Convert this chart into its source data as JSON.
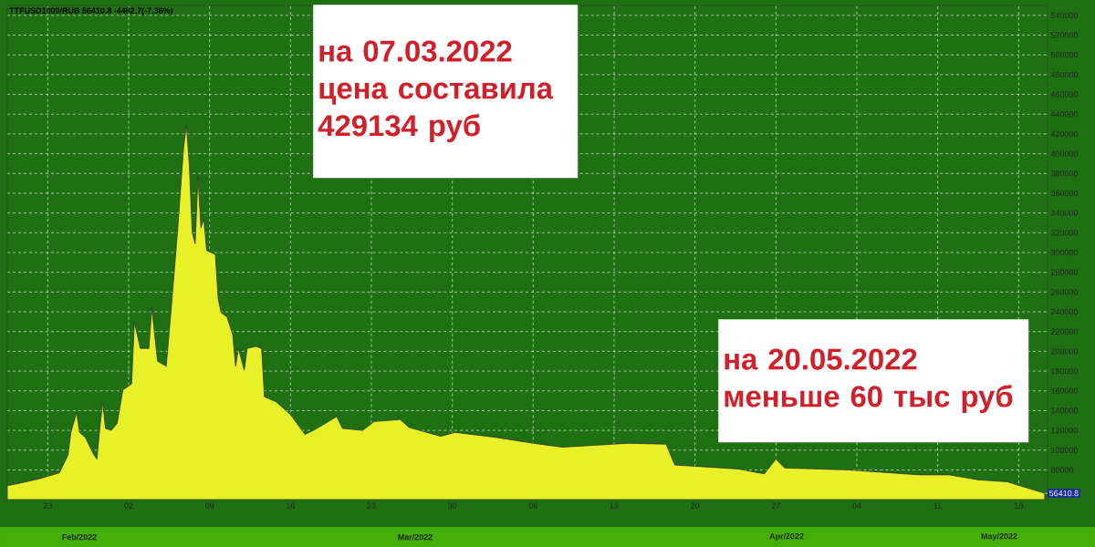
{
  "chart_data": {
    "type": "area",
    "title": "TTFUSD1000/RUB 56410.8 -4482.7(-7.36%)",
    "x": [
      "2022-02-19T12:00",
      "2022-02-20T18:00",
      "2022-02-22T06:00",
      "2022-02-24T00:00",
      "2022-02-24T18:00",
      "2022-02-25T00:00",
      "2022-02-25T12:00",
      "2022-02-25T18:00",
      "2022-02-26T06:00",
      "2022-02-27T00:00",
      "2022-02-27T06:00",
      "2022-02-27T12:00",
      "2022-02-27T18:00",
      "2022-02-28T00:00",
      "2022-02-28T12:00",
      "2022-03-01T00:00",
      "2022-03-01T12:00",
      "2022-03-02T06:00",
      "2022-03-02T12:00",
      "2022-03-03T00:00",
      "2022-03-03T18:00",
      "2022-03-04T00:00",
      "2022-03-04T12:00",
      "2022-03-05T06:00",
      "2022-03-05T18:00",
      "2022-03-06T06:00",
      "2022-03-06T18:00",
      "2022-03-07T00:00",
      "2022-03-07T06:00",
      "2022-03-07T12:00",
      "2022-03-07T18:00",
      "2022-03-08T00:00",
      "2022-03-08T06:00",
      "2022-03-08T12:00",
      "2022-03-08T18:00",
      "2022-03-09T12:00",
      "2022-03-09T18:00",
      "2022-03-10T00:00",
      "2022-03-10T12:00",
      "2022-03-11T00:00",
      "2022-03-11T06:00",
      "2022-03-11T12:00",
      "2022-03-12T00:00",
      "2022-03-12T06:00",
      "2022-03-13T00:00",
      "2022-03-13T12:00",
      "2022-03-13T18:00",
      "2022-03-14T18:00",
      "2022-03-16T00:00",
      "2022-03-17T06:00",
      "2022-03-18T00:00",
      "2022-03-20T00:00",
      "2022-03-20T12:00",
      "2022-03-22T06:00",
      "2022-03-23T06:00",
      "2022-03-25T12:00",
      "2022-03-26T06:00",
      "2022-03-29T00:00",
      "2022-03-30T06:00",
      "2022-04-02T18:00",
      "2022-04-06T00:00",
      "2022-04-08T12:00",
      "2022-04-14T06:00",
      "2022-04-17T12:00",
      "2022-04-18T06:00",
      "2022-04-23T18:00",
      "2022-04-26T00:00",
      "2022-04-27T00:00",
      "2022-04-27T18:00",
      "2022-05-03T06:00",
      "2022-05-09T12:00",
      "2022-05-12T00:00",
      "2022-05-14T12:00",
      "2022-05-17T00:00",
      "2022-05-20T06:00"
    ],
    "values": [
      64000,
      67000,
      71000,
      77000,
      95000,
      118000,
      138000,
      118000,
      113000,
      95000,
      91000,
      122000,
      148000,
      122000,
      120000,
      127000,
      161000,
      167000,
      230000,
      203000,
      203000,
      244000,
      190000,
      185000,
      253000,
      325000,
      406000,
      429134,
      388000,
      320000,
      309000,
      377000,
      325000,
      334000,
      302000,
      298000,
      253000,
      239000,
      235000,
      217000,
      185000,
      203000,
      181000,
      203000,
      205000,
      203000,
      154000,
      149000,
      136000,
      116000,
      120000,
      134000,
      122000,
      120000,
      129000,
      131000,
      123000,
      114000,
      118000,
      113000,
      107000,
      103000,
      107000,
      106000,
      85000,
      81000,
      76000,
      91000,
      82000,
      80000,
      75000,
      75000,
      70000,
      68000,
      56410.8
    ],
    "color": "#e8f028",
    "xlim": [
      "2022-02-19T12:00",
      "2022-05-20T12:00"
    ],
    "ylim": [
      50000,
      550000
    ],
    "yticks": [
      80000,
      100000,
      120000,
      140000,
      160000,
      180000,
      200000,
      220000,
      240000,
      260000,
      280000,
      300000,
      320000,
      340000,
      360000,
      380000,
      400000,
      420000,
      440000,
      460000,
      480000,
      500000,
      520000,
      540000
    ],
    "xticks": [
      {
        "value": "2022-02-23",
        "label": "23"
      },
      {
        "value": "2022-03-02",
        "label": "02"
      },
      {
        "value": "2022-03-09",
        "label": "09"
      },
      {
        "value": "2022-03-16",
        "label": "16"
      },
      {
        "value": "2022-03-23",
        "label": "23"
      },
      {
        "value": "2022-03-30",
        "label": "30"
      },
      {
        "value": "2022-04-06",
        "label": "06"
      },
      {
        "value": "2022-04-13",
        "label": "13"
      },
      {
        "value": "2022-04-20",
        "label": "20"
      },
      {
        "value": "2022-04-27",
        "label": "27"
      },
      {
        "value": "2022-05-04",
        "label": "04"
      },
      {
        "value": "2022-05-11",
        "label": "11"
      },
      {
        "value": "2022-05-18",
        "label": "18"
      }
    ],
    "grid": true,
    "annotations": [
      "на 07.03.2022 цена составила 429134 руб",
      "на 20.05.2022 меньше 60 тыс руб",
      {
        "text": "56410.8",
        "x": "2022-05-20T06:00",
        "y": 56410.8
      },
      "Feb/2022",
      "Mar/2022",
      "Apr/2022",
      "May/2022"
    ]
  }
}
